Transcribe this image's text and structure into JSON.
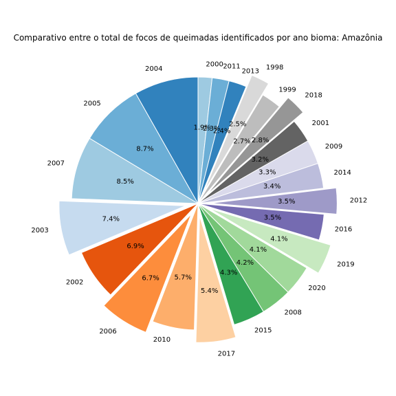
{
  "chart_data": {
    "type": "pie",
    "title": "Comparativo entre o total de focos de queimadas identificados por ano bioma: Amazônia",
    "start_angle_deg": 90,
    "direction": "clockwise",
    "slices": [
      {
        "label": "2000",
        "value": 1.9,
        "pct_text": "1.9%",
        "color": "#9ecae1",
        "explode": 0.0
      },
      {
        "label": "2011",
        "value": 2.3,
        "pct_text": "2.3%",
        "color": "#6baed6",
        "explode": 0.0
      },
      {
        "label": "2013",
        "value": 2.4,
        "pct_text": "2.4%",
        "color": "#3182bd",
        "explode": 0.0
      },
      {
        "label": "1998",
        "value": 2.5,
        "pct_text": "2.5%",
        "color": "#d9d9d9",
        "explode": 0.1
      },
      {
        "label": "1999",
        "value": 2.7,
        "pct_text": "2.7%",
        "color": "#bdbdbd",
        "explode": 0.0
      },
      {
        "label": "2018",
        "value": 2.8,
        "pct_text": "2.8%",
        "color": "#969696",
        "explode": 0.1
      },
      {
        "label": "2001",
        "value": 3.2,
        "pct_text": "3.2%",
        "color": "#636363",
        "explode": 0.0
      },
      {
        "label": "2009",
        "value": 3.3,
        "pct_text": "3.3%",
        "color": "#dadaeb",
        "explode": 0.0
      },
      {
        "label": "2014",
        "value": 3.4,
        "pct_text": "3.4%",
        "color": "#bcbddc",
        "explode": 0.0
      },
      {
        "label": "2012",
        "value": 3.5,
        "pct_text": "3.5%",
        "color": "#9e9ac8",
        "explode": 0.1
      },
      {
        "label": "2016",
        "value": 3.5,
        "pct_text": "3.5%",
        "color": "#756bb1",
        "explode": 0.0
      },
      {
        "label": "2019",
        "value": 4.1,
        "pct_text": "4.1%",
        "color": "#c7e9c0",
        "explode": 0.1
      },
      {
        "label": "2020",
        "value": 4.1,
        "pct_text": "4.1%",
        "color": "#a1d99b",
        "explode": 0.0
      },
      {
        "label": "2008",
        "value": 4.2,
        "pct_text": "4.2%",
        "color": "#74c476",
        "explode": 0.0
      },
      {
        "label": "2015",
        "value": 4.3,
        "pct_text": "4.3%",
        "color": "#31a354",
        "explode": 0.0
      },
      {
        "label": "2017",
        "value": 5.4,
        "pct_text": "5.4%",
        "color": "#fdd0a2",
        "explode": 0.1
      },
      {
        "label": "2010",
        "value": 5.7,
        "pct_text": "5.7%",
        "color": "#fdae6b",
        "explode": 0.0
      },
      {
        "label": "2006",
        "value": 6.7,
        "pct_text": "6.7%",
        "color": "#fd8d3c",
        "explode": 0.1
      },
      {
        "label": "2002",
        "value": 6.9,
        "pct_text": "6.9%",
        "color": "#e6550d",
        "explode": 0.0
      },
      {
        "label": "2003",
        "value": 7.4,
        "pct_text": "7.4%",
        "color": "#c6dbef",
        "explode": 0.1
      },
      {
        "label": "2007",
        "value": 8.5,
        "pct_text": "8.5%",
        "color": "#9ecae1",
        "explode": 0.0
      },
      {
        "label": "2005",
        "value": 8.7,
        "pct_text": "8.7%",
        "color": "#6baed6",
        "explode": 0.0
      },
      {
        "label": "2004",
        "value": 8.7,
        "pct_text": "",
        "color": "#3182bd",
        "explode": 0.0
      }
    ]
  }
}
